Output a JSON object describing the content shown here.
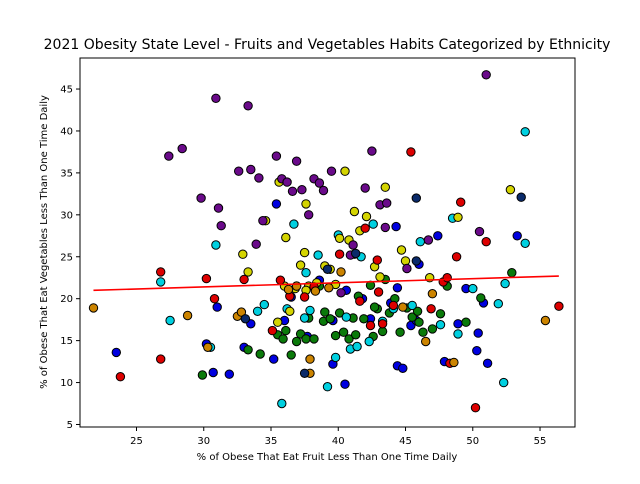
{
  "chart_data": {
    "type": "scatter",
    "title": "2021 Obesity State Level - Fruits and Vegetables Habits Categorized by Ethnicity",
    "xlabel": "% of Obese That Eat Fruit Less Than One Time Daily",
    "ylabel": "% of Obese That Eat Vegetables Less Than One Time Daily",
    "xlim": [
      20.8,
      57.6
    ],
    "ylim": [
      4.7,
      48.7
    ],
    "xticks": [
      25,
      30,
      35,
      40,
      45,
      50,
      55
    ],
    "yticks": [
      5,
      10,
      15,
      20,
      25,
      30,
      35,
      40,
      45
    ],
    "grid": false,
    "legend": "none",
    "marker_edge_color": "#000000",
    "colors": {
      "blue": "#0000e0",
      "green": "#0a7a0a",
      "cyan": "#00d0e0",
      "yellow": "#d4d400",
      "purple": "#6a0a8a",
      "red": "#dd0000",
      "orange": "#cc8400",
      "navy": "#0a2a6a"
    },
    "trendline": {
      "x": [
        21.8,
        56.4
      ],
      "y": [
        21.0,
        22.7
      ],
      "color": "#ff0000"
    },
    "series": [
      {
        "color": "blue",
        "points": [
          [
            23.5,
            13.6
          ],
          [
            30.7,
            11.2
          ],
          [
            31.0,
            19.0
          ],
          [
            31.9,
            11.0
          ],
          [
            33.0,
            14.2
          ],
          [
            33.5,
            17.0
          ],
          [
            35.2,
            12.8
          ],
          [
            35.4,
            31.3
          ],
          [
            36.0,
            17.4
          ],
          [
            36.5,
            20.2
          ],
          [
            38.6,
            22.2
          ],
          [
            39.6,
            12.2
          ],
          [
            39.6,
            17.4
          ],
          [
            40.5,
            9.8
          ],
          [
            40.6,
            21.0
          ],
          [
            41.2,
            25.3
          ],
          [
            41.8,
            20.0
          ],
          [
            42.4,
            17.6
          ],
          [
            43.9,
            19.5
          ],
          [
            44.3,
            28.6
          ],
          [
            44.4,
            21.3
          ],
          [
            44.4,
            12.0
          ],
          [
            44.8,
            11.7
          ],
          [
            45.4,
            16.8
          ],
          [
            45.8,
            17.4
          ],
          [
            46.0,
            24.1
          ],
          [
            47.4,
            27.5
          ],
          [
            47.9,
            12.5
          ],
          [
            48.9,
            17.0
          ],
          [
            49.5,
            21.2
          ],
          [
            50.3,
            13.8
          ],
          [
            50.4,
            15.9
          ],
          [
            50.8,
            19.5
          ],
          [
            51.1,
            12.3
          ],
          [
            53.3,
            27.5
          ],
          [
            30.2,
            14.6
          ],
          [
            37.7,
            15.5
          ]
        ]
      },
      {
        "color": "green",
        "points": [
          [
            29.9,
            10.9
          ],
          [
            33.3,
            13.9
          ],
          [
            34.2,
            13.4
          ],
          [
            35.5,
            15.7
          ],
          [
            35.9,
            15.2
          ],
          [
            36.1,
            16.2
          ],
          [
            36.5,
            13.3
          ],
          [
            36.9,
            14.9
          ],
          [
            37.2,
            15.8
          ],
          [
            37.6,
            15.2
          ],
          [
            38.2,
            15.2
          ],
          [
            38.6,
            21.5
          ],
          [
            38.9,
            17.3
          ],
          [
            39.4,
            17.6
          ],
          [
            39.8,
            15.6
          ],
          [
            40.1,
            18.3
          ],
          [
            40.4,
            16.0
          ],
          [
            40.8,
            15.2
          ],
          [
            41.1,
            17.7
          ],
          [
            41.3,
            15.7
          ],
          [
            41.9,
            17.6
          ],
          [
            42.4,
            21.6
          ],
          [
            42.6,
            15.5
          ],
          [
            42.9,
            18.8
          ],
          [
            43.3,
            16.1
          ],
          [
            43.5,
            22.3
          ],
          [
            43.8,
            18.3
          ],
          [
            44.2,
            20.0
          ],
          [
            44.6,
            16.0
          ],
          [
            45.1,
            18.9
          ],
          [
            45.5,
            17.8
          ],
          [
            46.0,
            17.2
          ],
          [
            46.3,
            16.0
          ],
          [
            47.0,
            16.4
          ],
          [
            47.6,
            18.2
          ],
          [
            48.1,
            21.5
          ],
          [
            49.5,
            17.2
          ],
          [
            50.6,
            20.1
          ],
          [
            52.9,
            23.1
          ],
          [
            37.8,
            17.7
          ],
          [
            39.0,
            18.4
          ],
          [
            41.5,
            20.3
          ],
          [
            42.7,
            19.0
          ],
          [
            45.9,
            18.5
          ]
        ]
      },
      {
        "color": "cyan",
        "points": [
          [
            26.8,
            22.0
          ],
          [
            27.5,
            17.4
          ],
          [
            30.5,
            14.2
          ],
          [
            30.9,
            26.4
          ],
          [
            34.5,
            19.3
          ],
          [
            34.0,
            18.5
          ],
          [
            35.8,
            7.5
          ],
          [
            36.2,
            18.8
          ],
          [
            36.7,
            28.9
          ],
          [
            37.5,
            17.7
          ],
          [
            37.6,
            23.1
          ],
          [
            38.5,
            25.2
          ],
          [
            39.2,
            9.5
          ],
          [
            39.8,
            13.0
          ],
          [
            40.6,
            17.8
          ],
          [
            40.9,
            14.0
          ],
          [
            41.4,
            14.3
          ],
          [
            41.7,
            25.0
          ],
          [
            42.3,
            14.9
          ],
          [
            42.6,
            28.9
          ],
          [
            43.3,
            17.3
          ],
          [
            44.1,
            18.8
          ],
          [
            45.5,
            19.2
          ],
          [
            46.1,
            26.8
          ],
          [
            47.6,
            16.9
          ],
          [
            48.5,
            29.6
          ],
          [
            48.9,
            15.8
          ],
          [
            50.0,
            21.2
          ],
          [
            51.9,
            19.4
          ],
          [
            52.3,
            10.0
          ],
          [
            52.4,
            21.8
          ],
          [
            53.9,
            39.9
          ],
          [
            53.9,
            26.6
          ],
          [
            37.9,
            18.6
          ],
          [
            40.0,
            27.6
          ]
        ]
      },
      {
        "color": "yellow",
        "points": [
          [
            32.9,
            25.3
          ],
          [
            33.3,
            23.2
          ],
          [
            34.6,
            29.3
          ],
          [
            35.5,
            17.2
          ],
          [
            35.6,
            33.9
          ],
          [
            36.0,
            21.5
          ],
          [
            36.1,
            27.3
          ],
          [
            36.4,
            18.5
          ],
          [
            36.8,
            21.2
          ],
          [
            37.2,
            24.0
          ],
          [
            37.5,
            25.5
          ],
          [
            37.6,
            31.3
          ],
          [
            37.8,
            21.5
          ],
          [
            38.4,
            21.9
          ],
          [
            39.0,
            23.9
          ],
          [
            39.4,
            23.5
          ],
          [
            39.8,
            21.7
          ],
          [
            40.1,
            27.2
          ],
          [
            40.5,
            35.2
          ],
          [
            40.8,
            27.0
          ],
          [
            41.2,
            30.4
          ],
          [
            41.6,
            28.1
          ],
          [
            42.1,
            29.8
          ],
          [
            42.7,
            23.8
          ],
          [
            43.1,
            22.6
          ],
          [
            43.5,
            33.3
          ],
          [
            44.7,
            25.8
          ],
          [
            45.0,
            24.5
          ],
          [
            46.8,
            22.5
          ],
          [
            48.9,
            29.7
          ],
          [
            52.8,
            33.0
          ],
          [
            37.6,
            21.0
          ]
        ]
      },
      {
        "color": "purple",
        "points": [
          [
            27.4,
            37.0
          ],
          [
            28.4,
            37.9
          ],
          [
            29.8,
            32.0
          ],
          [
            30.9,
            43.9
          ],
          [
            31.1,
            30.8
          ],
          [
            31.3,
            28.7
          ],
          [
            32.6,
            35.2
          ],
          [
            33.3,
            43.0
          ],
          [
            33.5,
            35.4
          ],
          [
            33.9,
            26.5
          ],
          [
            34.1,
            34.4
          ],
          [
            34.4,
            29.3
          ],
          [
            35.4,
            37.0
          ],
          [
            35.8,
            34.3
          ],
          [
            36.2,
            33.9
          ],
          [
            36.6,
            32.8
          ],
          [
            36.9,
            36.4
          ],
          [
            37.3,
            33.0
          ],
          [
            37.8,
            30.0
          ],
          [
            38.2,
            34.3
          ],
          [
            38.6,
            33.8
          ],
          [
            38.9,
            32.9
          ],
          [
            39.5,
            35.2
          ],
          [
            40.2,
            20.7
          ],
          [
            40.9,
            25.2
          ],
          [
            41.1,
            26.4
          ],
          [
            42.0,
            33.2
          ],
          [
            42.5,
            37.6
          ],
          [
            43.1,
            31.2
          ],
          [
            43.5,
            28.5
          ],
          [
            43.6,
            31.4
          ],
          [
            45.1,
            23.6
          ],
          [
            46.7,
            27.0
          ],
          [
            50.5,
            28.0
          ],
          [
            51.0,
            46.7
          ]
        ]
      },
      {
        "color": "red",
        "points": [
          [
            23.8,
            10.7
          ],
          [
            26.8,
            23.2
          ],
          [
            26.8,
            12.8
          ],
          [
            30.2,
            22.4
          ],
          [
            30.8,
            20.0
          ],
          [
            33.0,
            22.3
          ],
          [
            35.1,
            16.2
          ],
          [
            35.7,
            22.2
          ],
          [
            36.4,
            20.3
          ],
          [
            36.9,
            21.5
          ],
          [
            37.5,
            20.2
          ],
          [
            38.2,
            21.4
          ],
          [
            40.1,
            25.3
          ],
          [
            41.6,
            19.7
          ],
          [
            42.0,
            28.4
          ],
          [
            42.4,
            16.8
          ],
          [
            42.9,
            24.6
          ],
          [
            43.3,
            17.0
          ],
          [
            44.1,
            19.2
          ],
          [
            45.4,
            37.5
          ],
          [
            46.9,
            18.8
          ],
          [
            47.8,
            22.0
          ],
          [
            48.1,
            22.5
          ],
          [
            48.8,
            25.0
          ],
          [
            49.1,
            31.5
          ],
          [
            50.2,
            7.0
          ],
          [
            51.0,
            26.8
          ],
          [
            56.4,
            19.1
          ],
          [
            43.0,
            20.8
          ],
          [
            48.3,
            12.3
          ]
        ]
      },
      {
        "color": "orange",
        "points": [
          [
            21.8,
            18.9
          ],
          [
            28.8,
            18.0
          ],
          [
            32.5,
            17.9
          ],
          [
            32.8,
            18.4
          ],
          [
            36.3,
            21.1
          ],
          [
            36.9,
            21.5
          ],
          [
            37.9,
            11.1
          ],
          [
            37.9,
            12.8
          ],
          [
            38.3,
            20.9
          ],
          [
            39.3,
            21.3
          ],
          [
            40.2,
            23.2
          ],
          [
            44.8,
            19.0
          ],
          [
            46.5,
            14.9
          ],
          [
            47.0,
            20.6
          ],
          [
            48.6,
            12.4
          ],
          [
            55.4,
            17.4
          ],
          [
            30.3,
            14.2
          ]
        ]
      },
      {
        "color": "navy",
        "points": [
          [
            33.1,
            17.6
          ],
          [
            37.5,
            11.1
          ],
          [
            39.2,
            23.5
          ],
          [
            45.8,
            32.0
          ],
          [
            45.8,
            24.5
          ],
          [
            53.6,
            32.1
          ],
          [
            41.3,
            25.4
          ]
        ]
      }
    ]
  }
}
